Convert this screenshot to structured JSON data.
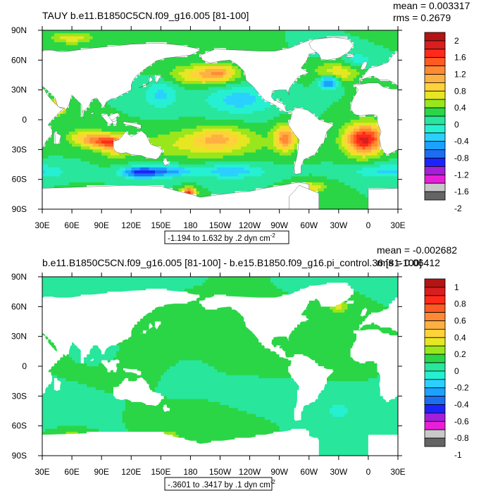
{
  "colors": {
    "land": "#ffffff",
    "frame": "#000000",
    "contour": "#2a2a2a",
    "fill_palette": [
      "#646464",
      "#c8c8c8",
      "#e81fd8",
      "#a51fd8",
      "#1b24ff",
      "#1c6ef0",
      "#1ba2ff",
      "#2ad0ff",
      "#26f0d2",
      "#28e69c",
      "#2ad646",
      "#98e61c",
      "#e6e623",
      "#ffd23a",
      "#ffb042",
      "#ff8a33",
      "#ff5a22",
      "#ff2a1a",
      "#d81e1e",
      "#b41414"
    ]
  },
  "chart_data": [
    {
      "type": "heatmap",
      "title": "TAUY b.e11.B1850C5CN.f09_g16.005 [81-100]",
      "stats": {
        "mean": "mean = 0.003317",
        "rms": "rms = 0.2679"
      },
      "subtitle": "-1.194 to 1.632 by .2 dyn cm",
      "subtitle_sup": "-2",
      "x_ticks": [
        "30E",
        "60E",
        "90E",
        "120E",
        "150E",
        "180",
        "150W",
        "120W",
        "90W",
        "60W",
        "30W",
        "0",
        "30E"
      ],
      "y_ticks": [
        "90N",
        "60N",
        "30N",
        "0",
        "30S",
        "60S",
        "90S"
      ],
      "colorbar_labels": [
        "2",
        "1.6",
        "1.2",
        "0.8",
        "0.4",
        "0",
        "-0.4",
        "-0.8",
        "-1.2",
        "-1.6",
        "-2"
      ],
      "value_range": [
        -1.194,
        1.632
      ],
      "contour_interval": 0.2,
      "features": [
        {
          "lon": 190,
          "lat": -25,
          "v": 0.45,
          "sx": 45,
          "sy": 10
        },
        {
          "lon": 210,
          "lat": -18,
          "v": 0.55,
          "sx": 20,
          "sy": 8
        },
        {
          "lon": 93,
          "lat": -22,
          "v": 1.05,
          "sx": 13,
          "sy": 5
        },
        {
          "lon": 72,
          "lat": -18,
          "v": 0.6,
          "sx": 12,
          "sy": 6
        },
        {
          "lon": 104,
          "lat": -27,
          "v": 0.55,
          "sx": 10,
          "sy": 8
        },
        {
          "lon": 276,
          "lat": -18,
          "v": 1.1,
          "sx": 8,
          "sy": 9
        },
        {
          "lon": 355,
          "lat": -22,
          "v": 1.2,
          "sx": 13,
          "sy": 10
        },
        {
          "lon": 0,
          "lat": -15,
          "v": 0.6,
          "sx": 15,
          "sy": 10
        },
        {
          "lon": 193,
          "lat": 45,
          "v": 0.75,
          "sx": 22,
          "sy": 7
        },
        {
          "lon": 210,
          "lat": 48,
          "v": 0.55,
          "sx": 10,
          "sy": 5
        },
        {
          "lon": 328,
          "lat": 47,
          "v": 0.6,
          "sx": 15,
          "sy": 7
        },
        {
          "lon": 320,
          "lat": 38,
          "v": -1.0,
          "sx": 7,
          "sy": 5
        },
        {
          "lon": 150,
          "lat": 25,
          "v": -0.45,
          "sx": 12,
          "sy": 10
        },
        {
          "lon": 230,
          "lat": 20,
          "v": -0.5,
          "sx": 25,
          "sy": 10
        },
        {
          "lon": 130,
          "lat": -53,
          "v": -1.1,
          "sx": 14,
          "sy": 4
        },
        {
          "lon": 160,
          "lat": -52,
          "v": -0.6,
          "sx": 15,
          "sy": 4
        },
        {
          "lon": 220,
          "lat": -52,
          "v": -0.55,
          "sx": 25,
          "sy": 5
        },
        {
          "lon": 20,
          "lat": -52,
          "v": -0.45,
          "sx": 25,
          "sy": 5
        },
        {
          "lon": 178,
          "lat": -73,
          "v": 1.5,
          "sx": 5,
          "sy": 3
        },
        {
          "lon": 70,
          "lat": -73,
          "v": 0.9,
          "sx": 10,
          "sy": 3
        },
        {
          "lon": 47,
          "lat": 15,
          "v": 1.0,
          "sx": 5,
          "sy": 6
        },
        {
          "lon": 60,
          "lat": 82,
          "v": 0.55,
          "sx": 15,
          "sy": 4
        },
        {
          "lon": 310,
          "lat": 72,
          "v": -0.9,
          "sx": 6,
          "sy": 4
        },
        {
          "lon": 350,
          "lat": 60,
          "v": -0.35,
          "sx": 10,
          "sy": 5
        },
        {
          "lon": 300,
          "lat": -68,
          "v": 0.6,
          "sx": 12,
          "sy": 4
        }
      ]
    },
    {
      "type": "heatmap",
      "title": "b.e11.B1850C5CN.f09_g16.005 [81-100] - b.e15.B1850.f09_g16.pi_control.36 [81-100]",
      "stats": {
        "mean": "mean = -0.002682",
        "rms": "rms = 0.06412"
      },
      "subtitle": "-.3601 to .3417 by .1 dyn cm",
      "subtitle_sup": "-2",
      "x_ticks": [
        "30E",
        "60E",
        "90E",
        "120E",
        "150E",
        "180",
        "150W",
        "120W",
        "90W",
        "60W",
        "30W",
        "0",
        "30E"
      ],
      "y_ticks": [
        "90N",
        "60N",
        "30N",
        "0",
        "30S",
        "60S",
        "90S"
      ],
      "colorbar_labels": [
        "1",
        "0.8",
        "0.6",
        "0.4",
        "0.2",
        "0",
        "-0.2",
        "-0.4",
        "-0.6",
        "-0.8",
        "-1"
      ],
      "value_range": [
        -0.3601,
        0.3417
      ],
      "contour_interval": 0.1,
      "features": [
        {
          "lon": 120,
          "lat": -5,
          "v": 0.09,
          "sx": 20,
          "sy": 10
        },
        {
          "lon": 180,
          "lat": -45,
          "v": 0.08,
          "sx": 25,
          "sy": 6
        },
        {
          "lon": 250,
          "lat": 12,
          "v": 0.08,
          "sx": 20,
          "sy": 8
        },
        {
          "lon": 200,
          "lat": 30,
          "v": 0.06,
          "sx": 15,
          "sy": 8
        },
        {
          "lon": 330,
          "lat": 60,
          "v": 0.25,
          "sx": 6,
          "sy": 4
        },
        {
          "lon": 350,
          "lat": 8,
          "v": 0.1,
          "sx": 8,
          "sy": 5
        },
        {
          "lon": 330,
          "lat": -45,
          "v": -0.2,
          "sx": 8,
          "sy": 5
        },
        {
          "lon": 60,
          "lat": -40,
          "v": -0.08,
          "sx": 20,
          "sy": 8
        },
        {
          "lon": 170,
          "lat": -15,
          "v": -0.06,
          "sx": 15,
          "sy": 8
        },
        {
          "lon": 230,
          "lat": -30,
          "v": -0.05,
          "sx": 20,
          "sy": 8
        },
        {
          "lon": 90,
          "lat": 10,
          "v": -0.05,
          "sx": 10,
          "sy": 6
        },
        {
          "lon": 60,
          "lat": 82,
          "v": -0.05,
          "sx": 20,
          "sy": 3
        },
        {
          "lon": 160,
          "lat": -70,
          "v": 0.18,
          "sx": 8,
          "sy": 3
        },
        {
          "lon": 60,
          "lat": -68,
          "v": 0.12,
          "sx": 8,
          "sy": 3
        }
      ]
    }
  ]
}
